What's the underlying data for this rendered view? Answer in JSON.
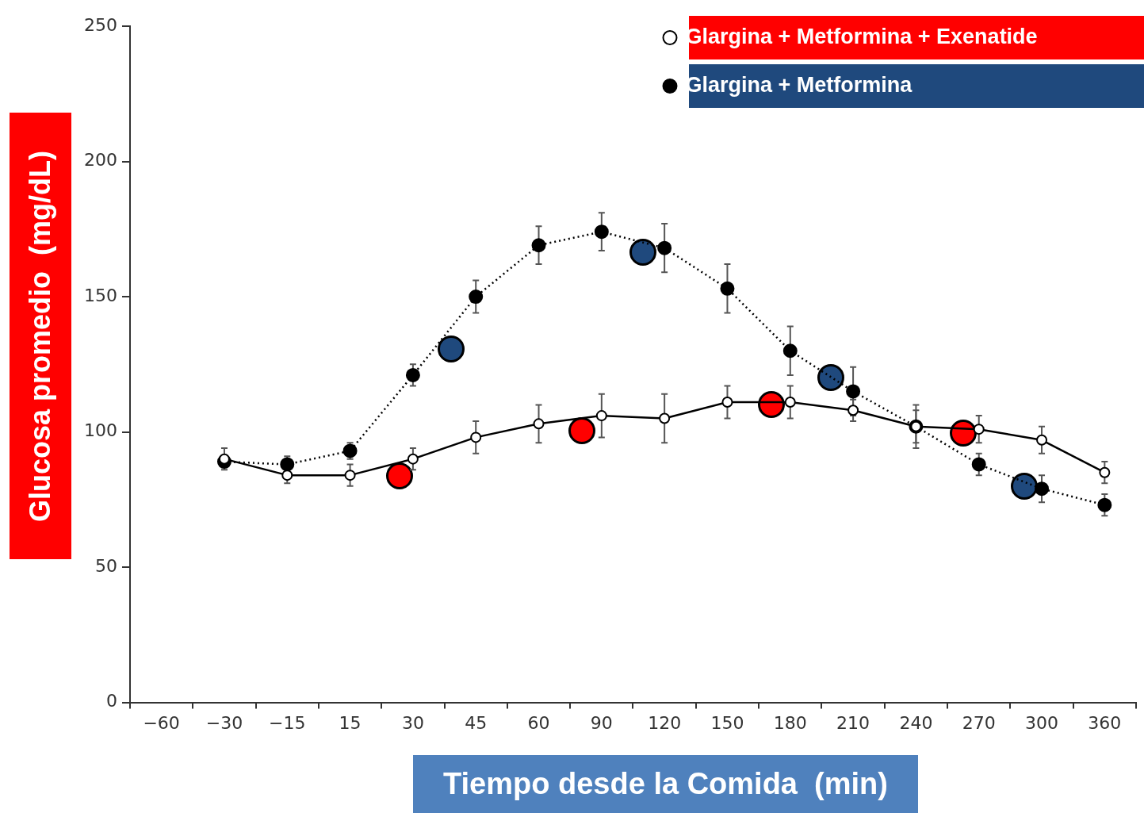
{
  "chart_data": {
    "type": "line",
    "xlabel": "Tiempo desde la Comida  (min)",
    "ylabel": "Glucosa promedio  (mg/dL)",
    "categories": [
      "−60",
      "−30",
      "−15",
      "15",
      "30",
      "45",
      "60",
      "90",
      "120",
      "150",
      "180",
      "210",
      "240",
      "270",
      "300",
      "360"
    ],
    "ylim": [
      0,
      250
    ],
    "yticks": [
      0,
      50,
      100,
      150,
      200,
      250
    ],
    "grid": false,
    "legend": "top right",
    "marker": "circle",
    "series": [
      {
        "name": "Glargina + Metformina + Exenatide",
        "color": "#000000",
        "line_style": "solid",
        "values": [
          null,
          90,
          84,
          84,
          90,
          98,
          103,
          106,
          105,
          111,
          111,
          108,
          102,
          101,
          97,
          85
        ],
        "errors": [
          null,
          4,
          3,
          4,
          4,
          6,
          7,
          8,
          9,
          6,
          6,
          4,
          6,
          5,
          5,
          4
        ]
      },
      {
        "name": "Glargina + Metformina",
        "color": "#000000",
        "line_style": "dotted",
        "values": [
          null,
          89,
          88,
          93,
          121,
          150,
          169,
          174,
          168,
          153,
          130,
          115,
          102,
          88,
          79,
          73
        ],
        "errors": [
          null,
          2,
          3,
          3,
          4,
          6,
          7,
          7,
          9,
          9,
          9,
          9,
          8,
          4,
          5,
          4
        ]
      }
    ]
  }
}
